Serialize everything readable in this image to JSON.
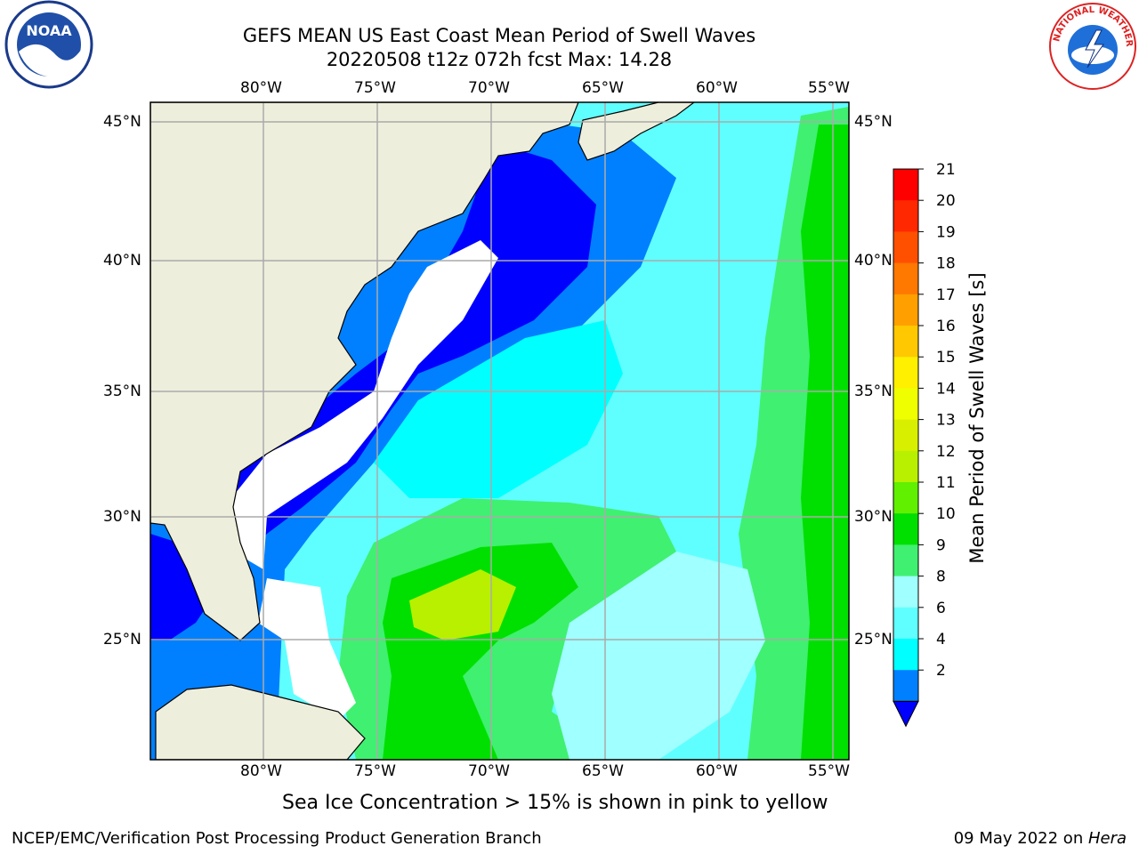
{
  "title": {
    "line1": "GEFS MEAN US East Coast Mean Period of Swell Waves",
    "line2": "20220508 t12z 072h fcst   Max: 14.28"
  },
  "axes": {
    "lon_labels": [
      "80°W",
      "75°W",
      "70°W",
      "65°W",
      "60°W",
      "55°W"
    ],
    "lat_labels": [
      "45°N",
      "40°N",
      "35°N",
      "30°N",
      "25°N"
    ]
  },
  "colorbar": {
    "label": "Mean Period of Swell Waves [s]",
    "ticks": [
      "21",
      "20",
      "19",
      "18",
      "17",
      "16",
      "15",
      "14",
      "13",
      "12",
      "11",
      "10",
      "9",
      "8",
      "6",
      "4",
      "2"
    ],
    "colors": [
      "#ff0000",
      "#ff2800",
      "#ff5000",
      "#ff7800",
      "#ffa000",
      "#ffc800",
      "#fff000",
      "#f0ff00",
      "#d8f000",
      "#b8f000",
      "#60f000",
      "#00e000",
      "#40f070",
      "#a0ffff",
      "#60ffff",
      "#00ffff",
      "#0080ff"
    ],
    "extend_color": "#0000ff"
  },
  "logos": {
    "nws_text": "NATIONAL WEATHER SERVICE",
    "noaa_text": "NOAA"
  },
  "footer": {
    "note": "Sea Ice Concentration > 15% is shown in pink to yellow",
    "credit": "NCEP/EMC/Verification Post Processing Product Generation Branch",
    "date": "09 May 2022 on ",
    "machine": "Hera"
  }
}
